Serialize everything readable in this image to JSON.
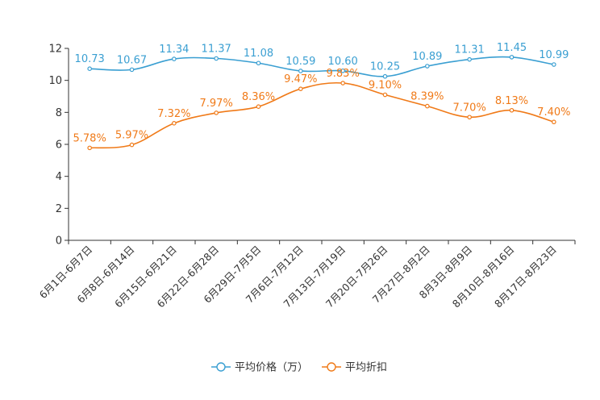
{
  "chart_data": {
    "type": "line",
    "categories": [
      "6月1日-6月7日",
      "6月8日-6月14日",
      "6月15日-6月21日",
      "6月22日-6月28日",
      "6月29日-7月5日",
      "7月6日-7月12日",
      "7月13日-7月19日",
      "7月20日-7月26日",
      "7月27日-8月2日",
      "8月3日-8月9日",
      "8月10日-8月16日",
      "8月17日-8月23日"
    ],
    "ylim": [
      0,
      12
    ],
    "yticks": [
      0,
      2,
      4,
      6,
      8,
      10,
      12
    ],
    "series": [
      {
        "name": "平均价格（万）",
        "color": "#3a9fd2",
        "values": [
          10.73,
          10.67,
          11.34,
          11.37,
          11.08,
          10.59,
          10.6,
          10.25,
          10.89,
          11.31,
          11.45,
          10.99
        ],
        "labels": [
          "10.73",
          "10.67",
          "11.34",
          "11.37",
          "11.08",
          "10.59",
          "10.60",
          "10.25",
          "10.89",
          "11.31",
          "11.45",
          "10.99"
        ]
      },
      {
        "name": "平均折扣",
        "color": "#f07a18",
        "values": [
          5.78,
          5.97,
          7.32,
          7.97,
          8.36,
          9.47,
          9.83,
          9.1,
          8.39,
          7.7,
          8.13,
          7.4
        ],
        "labels": [
          "5.78%",
          "5.97%",
          "7.32%",
          "7.97%",
          "8.36%",
          "9.47%",
          "9.83%",
          "9.10%",
          "8.39%",
          "7.70%",
          "8.13%",
          "7.40%"
        ]
      }
    ],
    "legend": "bottom-center",
    "grid": false
  }
}
